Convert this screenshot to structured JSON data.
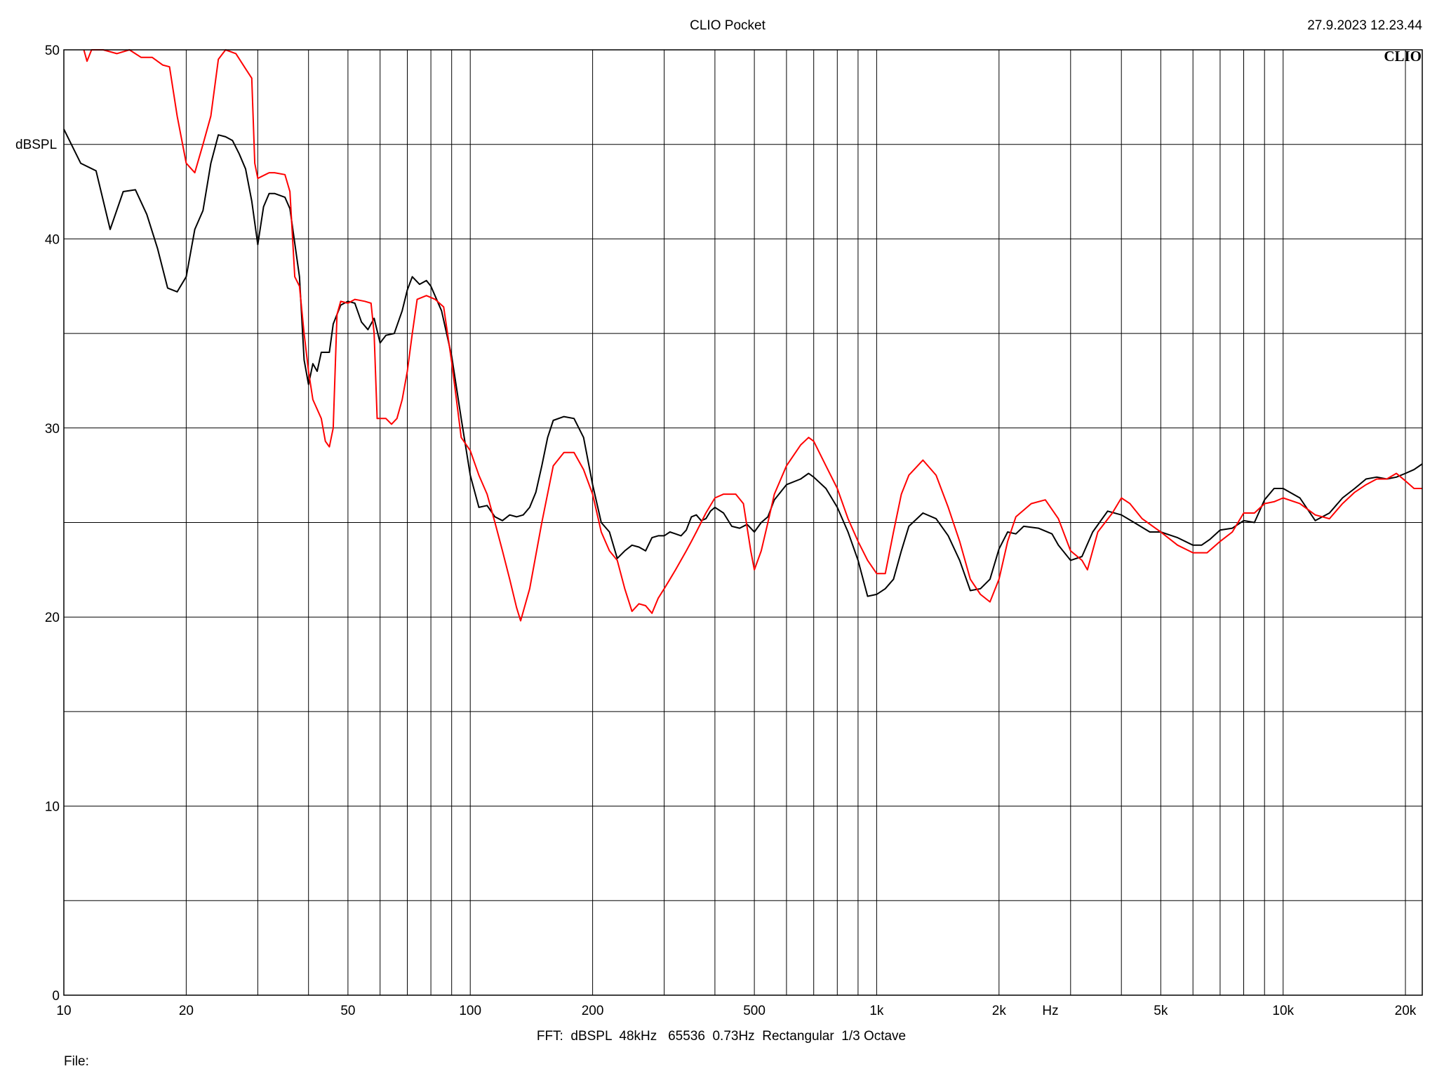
{
  "header": {
    "title": "CLIO Pocket",
    "timestamp": "27.9.2023 12.23.44",
    "logo": "CLIO"
  },
  "footer": {
    "settings": "FFT:  dBSPL  48kHz   65536  0.73Hz  Rectangular  1/3 Octave",
    "file_label": "File:"
  },
  "chart_data": {
    "type": "line",
    "title": "CLIO Pocket",
    "xlabel": "Hz",
    "ylabel": "dBSPL",
    "x_scale": "log",
    "xlim": [
      10,
      22000
    ],
    "ylim": [
      0,
      50
    ],
    "grid": true,
    "x_tick_labels": [
      {
        "value": 10,
        "label": "10"
      },
      {
        "value": 20,
        "label": "20"
      },
      {
        "value": 50,
        "label": "50"
      },
      {
        "value": 100,
        "label": "100"
      },
      {
        "value": 200,
        "label": "200"
      },
      {
        "value": 500,
        "label": "500"
      },
      {
        "value": 1000,
        "label": "1k"
      },
      {
        "value": 2000,
        "label": "2k"
      },
      {
        "value": 5000,
        "label": "5k"
      },
      {
        "value": 10000,
        "label": "10k"
      },
      {
        "value": 20000,
        "label": "20k"
      }
    ],
    "y_tick_labels": [
      {
        "value": 0,
        "label": "0"
      },
      {
        "value": 10,
        "label": "10"
      },
      {
        "value": 20,
        "label": "20"
      },
      {
        "value": 30,
        "label": "30"
      },
      {
        "value": 40,
        "label": "40"
      },
      {
        "value": 50,
        "label": "50"
      }
    ],
    "series": [
      {
        "color": "#000000",
        "points": [
          [
            10,
            45.8
          ],
          [
            11,
            44
          ],
          [
            12,
            43.6
          ],
          [
            13,
            40.5
          ],
          [
            14,
            42.5
          ],
          [
            15,
            42.6
          ],
          [
            16,
            41.3
          ],
          [
            17,
            39.5
          ],
          [
            18,
            37.4
          ],
          [
            19,
            37.2
          ],
          [
            20,
            38
          ],
          [
            21,
            40.5
          ],
          [
            22,
            41.5
          ],
          [
            23,
            44
          ],
          [
            24,
            45.5
          ],
          [
            25,
            45.4
          ],
          [
            26,
            45.2
          ],
          [
            27,
            44.5
          ],
          [
            28,
            43.7
          ],
          [
            29,
            42
          ],
          [
            30,
            39.7
          ],
          [
            31,
            41.7
          ],
          [
            32,
            42.4
          ],
          [
            33,
            42.4
          ],
          [
            35,
            42.2
          ],
          [
            36,
            41.6
          ],
          [
            38,
            38
          ],
          [
            39,
            33.6
          ],
          [
            40,
            32.3
          ],
          [
            41,
            33.4
          ],
          [
            42,
            33
          ],
          [
            43,
            34
          ],
          [
            44,
            34
          ],
          [
            45,
            34
          ],
          [
            46,
            35.5
          ],
          [
            48,
            36.5
          ],
          [
            50,
            36.7
          ],
          [
            52,
            36.6
          ],
          [
            54,
            35.6
          ],
          [
            56,
            35.2
          ],
          [
            57,
            35.5
          ],
          [
            58,
            35.8
          ],
          [
            60,
            34.5
          ],
          [
            62,
            34.9
          ],
          [
            65,
            35
          ],
          [
            68,
            36.2
          ],
          [
            70,
            37.3
          ],
          [
            72,
            38
          ],
          [
            75,
            37.6
          ],
          [
            78,
            37.8
          ],
          [
            80,
            37.5
          ],
          [
            85,
            36.2
          ],
          [
            90,
            33.8
          ],
          [
            95,
            30.5
          ],
          [
            100,
            27.5
          ],
          [
            105,
            25.8
          ],
          [
            110,
            25.9
          ],
          [
            115,
            25.3
          ],
          [
            120,
            25.1
          ],
          [
            125,
            25.4
          ],
          [
            130,
            25.3
          ],
          [
            135,
            25.4
          ],
          [
            140,
            25.8
          ],
          [
            145,
            26.6
          ],
          [
            150,
            28
          ],
          [
            155,
            29.5
          ],
          [
            160,
            30.4
          ],
          [
            170,
            30.6
          ],
          [
            180,
            30.5
          ],
          [
            190,
            29.5
          ],
          [
            200,
            27
          ],
          [
            210,
            25
          ],
          [
            220,
            24.5
          ],
          [
            230,
            23.1
          ],
          [
            240,
            23.5
          ],
          [
            250,
            23.8
          ],
          [
            260,
            23.7
          ],
          [
            270,
            23.5
          ],
          [
            280,
            24.2
          ],
          [
            290,
            24.3
          ],
          [
            300,
            24.3
          ],
          [
            310,
            24.5
          ],
          [
            320,
            24.4
          ],
          [
            330,
            24.3
          ],
          [
            340,
            24.6
          ],
          [
            350,
            25.3
          ],
          [
            360,
            25.4
          ],
          [
            370,
            25.1
          ],
          [
            380,
            25.2
          ],
          [
            390,
            25.6
          ],
          [
            400,
            25.8
          ],
          [
            420,
            25.5
          ],
          [
            440,
            24.8
          ],
          [
            460,
            24.7
          ],
          [
            480,
            24.9
          ],
          [
            500,
            24.5
          ],
          [
            520,
            25
          ],
          [
            540,
            25.3
          ],
          [
            560,
            26.2
          ],
          [
            600,
            27
          ],
          [
            650,
            27.3
          ],
          [
            680,
            27.6
          ],
          [
            700,
            27.4
          ],
          [
            750,
            26.8
          ],
          [
            800,
            25.8
          ],
          [
            850,
            24.5
          ],
          [
            900,
            23
          ],
          [
            950,
            21.1
          ],
          [
            1000,
            21.2
          ],
          [
            1050,
            21.5
          ],
          [
            1100,
            22
          ],
          [
            1150,
            23.5
          ],
          [
            1200,
            24.8
          ],
          [
            1300,
            25.5
          ],
          [
            1400,
            25.2
          ],
          [
            1500,
            24.3
          ],
          [
            1600,
            23
          ],
          [
            1700,
            21.4
          ],
          [
            1800,
            21.5
          ],
          [
            1900,
            22
          ],
          [
            2000,
            23.6
          ],
          [
            2100,
            24.5
          ],
          [
            2200,
            24.4
          ],
          [
            2300,
            24.8
          ],
          [
            2500,
            24.7
          ],
          [
            2700,
            24.4
          ],
          [
            2800,
            23.8
          ],
          [
            3000,
            23
          ],
          [
            3200,
            23.2
          ],
          [
            3400,
            24.5
          ],
          [
            3700,
            25.6
          ],
          [
            4000,
            25.4
          ],
          [
            4300,
            25
          ],
          [
            4700,
            24.5
          ],
          [
            5000,
            24.5
          ],
          [
            5500,
            24.2
          ],
          [
            6000,
            23.8
          ],
          [
            6300,
            23.8
          ],
          [
            6600,
            24.1
          ],
          [
            7000,
            24.6
          ],
          [
            7500,
            24.7
          ],
          [
            8000,
            25.1
          ],
          [
            8500,
            25
          ],
          [
            9000,
            26.2
          ],
          [
            9500,
            26.8
          ],
          [
            10000,
            26.8
          ],
          [
            11000,
            26.3
          ],
          [
            12000,
            25.1
          ],
          [
            13000,
            25.5
          ],
          [
            14000,
            26.3
          ],
          [
            15000,
            26.8
          ],
          [
            16000,
            27.3
          ],
          [
            17000,
            27.4
          ],
          [
            18000,
            27.3
          ],
          [
            19000,
            27.4
          ],
          [
            20000,
            27.6
          ],
          [
            21000,
            27.8
          ],
          [
            22000,
            28.1
          ]
        ]
      },
      {
        "color": "#ff0000",
        "points": [
          [
            11.2,
            50
          ],
          [
            11.4,
            49.4
          ],
          [
            11.7,
            50
          ],
          [
            12.5,
            50
          ],
          [
            13.5,
            49.8
          ],
          [
            14.5,
            50
          ],
          [
            15.5,
            49.6
          ],
          [
            16.5,
            49.6
          ],
          [
            17.5,
            49.2
          ],
          [
            18.2,
            49.1
          ],
          [
            19,
            46.5
          ],
          [
            20,
            44
          ],
          [
            21,
            43.5
          ],
          [
            22,
            45
          ],
          [
            23,
            46.5
          ],
          [
            24,
            49.5
          ],
          [
            25,
            50
          ],
          [
            26.5,
            49.8
          ],
          [
            28,
            49
          ],
          [
            29,
            48.5
          ],
          [
            29.5,
            44
          ],
          [
            30,
            43.2
          ],
          [
            32,
            43.5
          ],
          [
            33,
            43.5
          ],
          [
            35,
            43.4
          ],
          [
            36,
            42.5
          ],
          [
            37,
            38
          ],
          [
            38,
            37.5
          ],
          [
            39,
            35
          ],
          [
            40,
            33
          ],
          [
            41,
            31.5
          ],
          [
            43,
            30.5
          ],
          [
            44,
            29.3
          ],
          [
            45,
            29
          ],
          [
            46,
            30
          ],
          [
            47,
            36
          ],
          [
            48,
            36.7
          ],
          [
            50,
            36.6
          ],
          [
            52,
            36.8
          ],
          [
            55,
            36.7
          ],
          [
            57,
            36.6
          ],
          [
            58,
            35
          ],
          [
            59,
            30.5
          ],
          [
            62,
            30.5
          ],
          [
            64,
            30.2
          ],
          [
            66,
            30.5
          ],
          [
            68,
            31.5
          ],
          [
            70,
            33
          ],
          [
            72,
            35
          ],
          [
            74,
            36.8
          ],
          [
            78,
            37
          ],
          [
            82,
            36.8
          ],
          [
            86,
            36.4
          ],
          [
            90,
            33.5
          ],
          [
            95,
            29.5
          ],
          [
            100,
            28.8
          ],
          [
            105,
            27.5
          ],
          [
            110,
            26.5
          ],
          [
            115,
            25
          ],
          [
            120,
            23.5
          ],
          [
            125,
            22
          ],
          [
            130,
            20.5
          ],
          [
            133,
            19.8
          ],
          [
            140,
            21.5
          ],
          [
            150,
            25
          ],
          [
            160,
            28
          ],
          [
            170,
            28.7
          ],
          [
            180,
            28.7
          ],
          [
            190,
            27.8
          ],
          [
            200,
            26.5
          ],
          [
            210,
            24.5
          ],
          [
            220,
            23.5
          ],
          [
            230,
            23
          ],
          [
            240,
            21.5
          ],
          [
            250,
            20.3
          ],
          [
            260,
            20.7
          ],
          [
            270,
            20.6
          ],
          [
            280,
            20.2
          ],
          [
            290,
            21
          ],
          [
            300,
            21.5
          ],
          [
            310,
            22
          ],
          [
            320,
            22.5
          ],
          [
            340,
            23.5
          ],
          [
            350,
            24
          ],
          [
            360,
            24.5
          ],
          [
            380,
            25.5
          ],
          [
            400,
            26.3
          ],
          [
            420,
            26.5
          ],
          [
            450,
            26.5
          ],
          [
            470,
            26
          ],
          [
            490,
            23.5
          ],
          [
            500,
            22.5
          ],
          [
            520,
            23.5
          ],
          [
            540,
            25
          ],
          [
            560,
            26.5
          ],
          [
            600,
            28
          ],
          [
            650,
            29.1
          ],
          [
            680,
            29.5
          ],
          [
            700,
            29.3
          ],
          [
            750,
            28
          ],
          [
            800,
            26.8
          ],
          [
            850,
            25.2
          ],
          [
            900,
            24
          ],
          [
            950,
            23
          ],
          [
            1000,
            22.3
          ],
          [
            1050,
            22.3
          ],
          [
            1100,
            24.5
          ],
          [
            1150,
            26.5
          ],
          [
            1200,
            27.5
          ],
          [
            1300,
            28.3
          ],
          [
            1400,
            27.5
          ],
          [
            1500,
            25.8
          ],
          [
            1600,
            24
          ],
          [
            1700,
            22
          ],
          [
            1800,
            21.2
          ],
          [
            1900,
            20.8
          ],
          [
            2000,
            22
          ],
          [
            2100,
            24
          ],
          [
            2200,
            25.3
          ],
          [
            2400,
            26
          ],
          [
            2600,
            26.2
          ],
          [
            2800,
            25.2
          ],
          [
            3000,
            23.5
          ],
          [
            3200,
            23
          ],
          [
            3300,
            22.5
          ],
          [
            3500,
            24.5
          ],
          [
            3800,
            25.5
          ],
          [
            4000,
            26.3
          ],
          [
            4200,
            26
          ],
          [
            4500,
            25.2
          ],
          [
            5000,
            24.5
          ],
          [
            5500,
            23.8
          ],
          [
            6000,
            23.4
          ],
          [
            6500,
            23.4
          ],
          [
            7000,
            24
          ],
          [
            7500,
            24.5
          ],
          [
            8000,
            25.5
          ],
          [
            8500,
            25.5
          ],
          [
            9000,
            26
          ],
          [
            9500,
            26.1
          ],
          [
            10000,
            26.3
          ],
          [
            11000,
            26
          ],
          [
            12000,
            25.4
          ],
          [
            13000,
            25.2
          ],
          [
            14000,
            26
          ],
          [
            15000,
            26.6
          ],
          [
            16000,
            27
          ],
          [
            17000,
            27.3
          ],
          [
            18000,
            27.3
          ],
          [
            19000,
            27.6
          ],
          [
            20000,
            27.2
          ],
          [
            21000,
            26.8
          ],
          [
            22000,
            26.8
          ]
        ]
      }
    ]
  }
}
